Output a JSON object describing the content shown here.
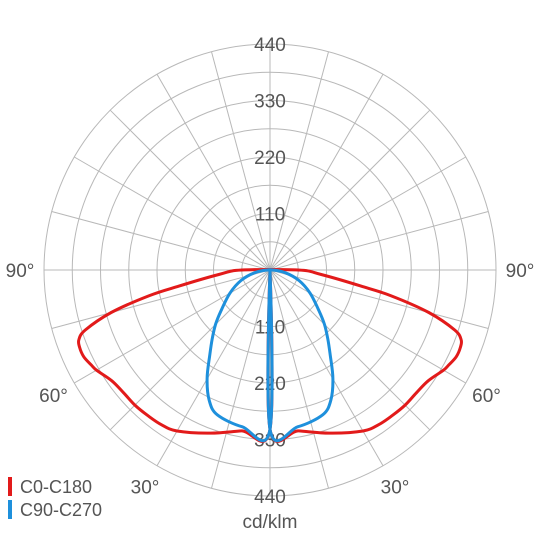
{
  "chart_data": {
    "type": "polar",
    "unit": "cd/klm",
    "radial_ticks": [
      110,
      220,
      330,
      440
    ],
    "radial_max": 440,
    "ring_step": 55,
    "spoke_step_deg": 15,
    "angle_labels": [
      "90°",
      "60°",
      "30°"
    ],
    "legend_position": "bottom-left",
    "series": [
      {
        "name": "C0-C180",
        "color": "#e21a1a",
        "angles": [
          0,
          10,
          20,
          30,
          35,
          40,
          45,
          50,
          55,
          60,
          62,
          65,
          68,
          70,
          72,
          75,
          78,
          80,
          85,
          90
        ],
        "values": [
          310,
          318,
          338,
          362,
          368,
          370,
          372,
          372,
          376,
          390,
          394,
          400,
          400,
          396,
          378,
          320,
          240,
          180,
          100,
          55
        ]
      },
      {
        "name": "C90-C270",
        "color": "#1e90dc",
        "angles": [
          0,
          10,
          20,
          25,
          30,
          35,
          40,
          45,
          50,
          60,
          70,
          80,
          90
        ],
        "values": [
          310,
          310,
          300,
          280,
          245,
          205,
          175,
          150,
          125,
          90,
          60,
          30,
          5
        ]
      }
    ]
  }
}
